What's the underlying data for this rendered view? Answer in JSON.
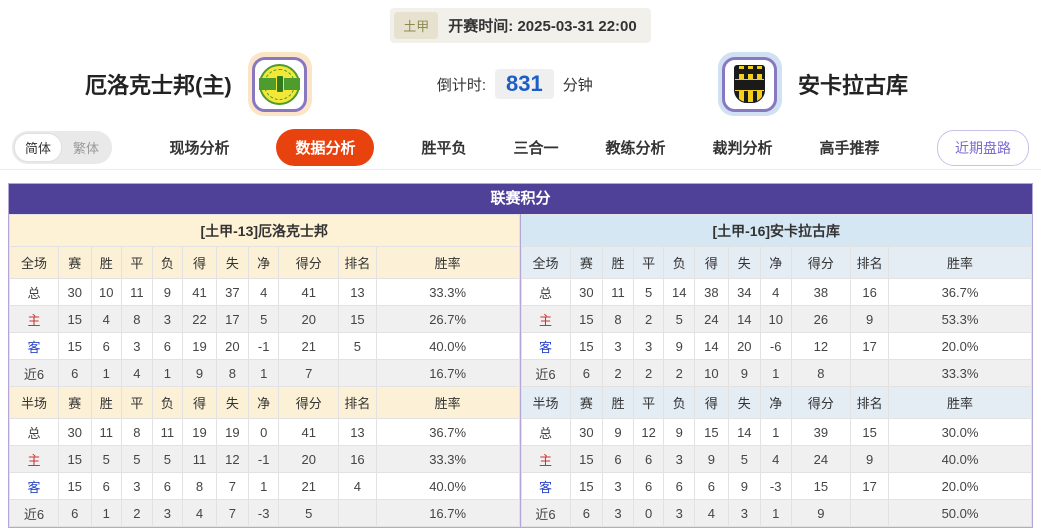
{
  "match_header": {
    "league_badge": "土甲",
    "kickoff_label": "开赛时间:",
    "kickoff_time": "2025-03-31 22:00",
    "home_team": "厄洛克士邦(主)",
    "away_team": "安卡拉古库",
    "countdown_label": "倒计时:",
    "countdown_value": "831",
    "countdown_unit": "分钟"
  },
  "toolbar": {
    "lang_simplified": "简体",
    "lang_traditional": "繁体",
    "tabs": [
      {
        "label": "现场分析",
        "active": false
      },
      {
        "label": "数据分析",
        "active": true
      },
      {
        "label": "胜平负",
        "active": false
      },
      {
        "label": "三合一",
        "active": false
      },
      {
        "label": "教练分析",
        "active": false
      },
      {
        "label": "裁判分析",
        "active": false
      },
      {
        "label": "高手推荐",
        "active": false
      }
    ],
    "recent_odds_button": "近期盘路"
  },
  "colors": {
    "accent_tab": "#e8430f",
    "table_header_purple": "#4e4197",
    "left_panel_cream": "#fdf1d6",
    "right_panel_blue": "#d6e7f4",
    "home_row_red": "#cc3333",
    "away_row_blue": "#2b46c8",
    "countdown_blue": "#1d5ec4"
  },
  "league_table": {
    "title": "联赛积分",
    "columns": {
      "full": [
        "全场",
        "赛",
        "胜",
        "平",
        "负",
        "得",
        "失",
        "净",
        "得分",
        "排名",
        "胜率"
      ],
      "half": [
        "半场",
        "赛",
        "胜",
        "平",
        "负",
        "得",
        "失",
        "净",
        "得分",
        "排名",
        "胜率"
      ]
    },
    "left": {
      "team_header": "[土甲-13]厄洛克士邦",
      "full": [
        {
          "label": "总",
          "type": "total",
          "cells": [
            "30",
            "10",
            "11",
            "9",
            "41",
            "37",
            "4",
            "41",
            "13",
            "33.3%"
          ]
        },
        {
          "label": "主",
          "type": "home",
          "cells": [
            "15",
            "4",
            "8",
            "3",
            "22",
            "17",
            "5",
            "20",
            "15",
            "26.7%"
          ]
        },
        {
          "label": "客",
          "type": "away",
          "cells": [
            "15",
            "6",
            "3",
            "6",
            "19",
            "20",
            "-1",
            "21",
            "5",
            "40.0%"
          ]
        },
        {
          "label": "近6",
          "type": "recent",
          "cells": [
            "6",
            "1",
            "4",
            "1",
            "9",
            "8",
            "1",
            "7",
            "",
            "16.7%"
          ]
        }
      ],
      "half": [
        {
          "label": "总",
          "type": "total",
          "cells": [
            "30",
            "11",
            "8",
            "11",
            "19",
            "19",
            "0",
            "41",
            "13",
            "36.7%"
          ]
        },
        {
          "label": "主",
          "type": "home",
          "cells": [
            "15",
            "5",
            "5",
            "5",
            "11",
            "12",
            "-1",
            "20",
            "16",
            "33.3%"
          ]
        },
        {
          "label": "客",
          "type": "away",
          "cells": [
            "15",
            "6",
            "3",
            "6",
            "8",
            "7",
            "1",
            "21",
            "4",
            "40.0%"
          ]
        },
        {
          "label": "近6",
          "type": "recent",
          "cells": [
            "6",
            "1",
            "2",
            "3",
            "4",
            "7",
            "-3",
            "5",
            "",
            "16.7%"
          ]
        }
      ]
    },
    "right": {
      "team_header": "[土甲-16]安卡拉古库",
      "full": [
        {
          "label": "总",
          "type": "total",
          "cells": [
            "30",
            "11",
            "5",
            "14",
            "38",
            "34",
            "4",
            "38",
            "16",
            "36.7%"
          ]
        },
        {
          "label": "主",
          "type": "home",
          "cells": [
            "15",
            "8",
            "2",
            "5",
            "24",
            "14",
            "10",
            "26",
            "9",
            "53.3%"
          ]
        },
        {
          "label": "客",
          "type": "away",
          "cells": [
            "15",
            "3",
            "3",
            "9",
            "14",
            "20",
            "-6",
            "12",
            "17",
            "20.0%"
          ]
        },
        {
          "label": "近6",
          "type": "recent",
          "cells": [
            "6",
            "2",
            "2",
            "2",
            "10",
            "9",
            "1",
            "8",
            "",
            "33.3%"
          ]
        }
      ],
      "half": [
        {
          "label": "总",
          "type": "total",
          "cells": [
            "30",
            "9",
            "12",
            "9",
            "15",
            "14",
            "1",
            "39",
            "15",
            "30.0%"
          ]
        },
        {
          "label": "主",
          "type": "home",
          "cells": [
            "15",
            "6",
            "6",
            "3",
            "9",
            "5",
            "4",
            "24",
            "9",
            "40.0%"
          ]
        },
        {
          "label": "客",
          "type": "away",
          "cells": [
            "15",
            "3",
            "6",
            "6",
            "6",
            "9",
            "-3",
            "15",
            "17",
            "20.0%"
          ]
        },
        {
          "label": "近6",
          "type": "recent",
          "cells": [
            "6",
            "3",
            "0",
            "3",
            "4",
            "3",
            "1",
            "9",
            "",
            "50.0%"
          ]
        }
      ]
    }
  }
}
